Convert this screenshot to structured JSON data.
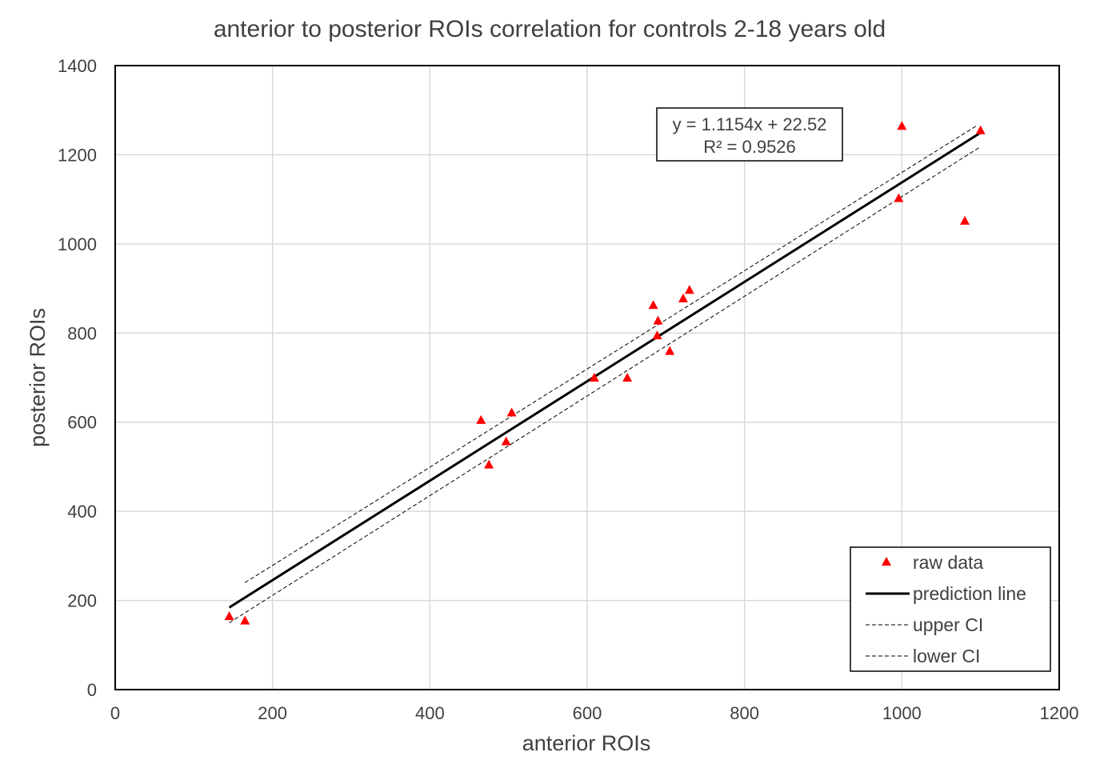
{
  "chart_data": {
    "type": "scatter",
    "title": "anterior to posterior ROIs correlation for controls 2-18 years old",
    "xlabel": "anterior ROIs",
    "ylabel": "posterior ROIs",
    "xlim": [
      0,
      1200
    ],
    "ylim": [
      0,
      1400
    ],
    "x_ticks": [
      0,
      200,
      400,
      600,
      800,
      1000,
      1200
    ],
    "y_ticks": [
      0,
      200,
      400,
      600,
      800,
      1000,
      1200,
      1400
    ],
    "x_tick_labels": [
      "0",
      "200",
      "400",
      "600",
      "800",
      "1000",
      "1200"
    ],
    "y_tick_labels": [
      "0",
      "200",
      "400",
      "600",
      "800",
      "1000",
      "1200",
      "1400"
    ],
    "grid": true,
    "legend_position": "bottom-right",
    "series": [
      {
        "name": "raw data",
        "kind": "markers",
        "marker": "triangle",
        "color": "#ff0000",
        "points": [
          [
            145,
            165
          ],
          [
            165,
            155
          ],
          [
            465,
            605
          ],
          [
            475,
            505
          ],
          [
            497,
            557
          ],
          [
            504,
            622
          ],
          [
            609,
            700
          ],
          [
            651,
            700
          ],
          [
            684,
            863
          ],
          [
            690,
            828
          ],
          [
            689,
            795
          ],
          [
            705,
            760
          ],
          [
            722,
            878
          ],
          [
            730,
            897
          ],
          [
            996,
            1103
          ],
          [
            1000,
            1265
          ],
          [
            1080,
            1052
          ],
          [
            1100,
            1255
          ]
        ]
      },
      {
        "name": "prediction line",
        "kind": "line",
        "style": "solid",
        "color": "#000000",
        "points": [
          [
            145,
            184.25
          ],
          [
            1100,
            1249.46
          ]
        ]
      },
      {
        "name": "upper CI",
        "kind": "line",
        "style": "dashed",
        "color": "#000000",
        "points": [
          [
            165,
            240
          ],
          [
            1095,
            1265
          ]
        ]
      },
      {
        "name": "lower CI",
        "kind": "line",
        "style": "dashed",
        "color": "#000000",
        "points": [
          [
            145,
            150
          ],
          [
            1100,
            1218
          ]
        ]
      }
    ],
    "annotation": {
      "line1": "y = 1.1154x + 22.52",
      "line2": "R² = 0.9526"
    },
    "colors": {
      "markers": "#ff0000",
      "lines": "#000000",
      "grid": "#d9d9d9",
      "text": "#404040"
    }
  }
}
